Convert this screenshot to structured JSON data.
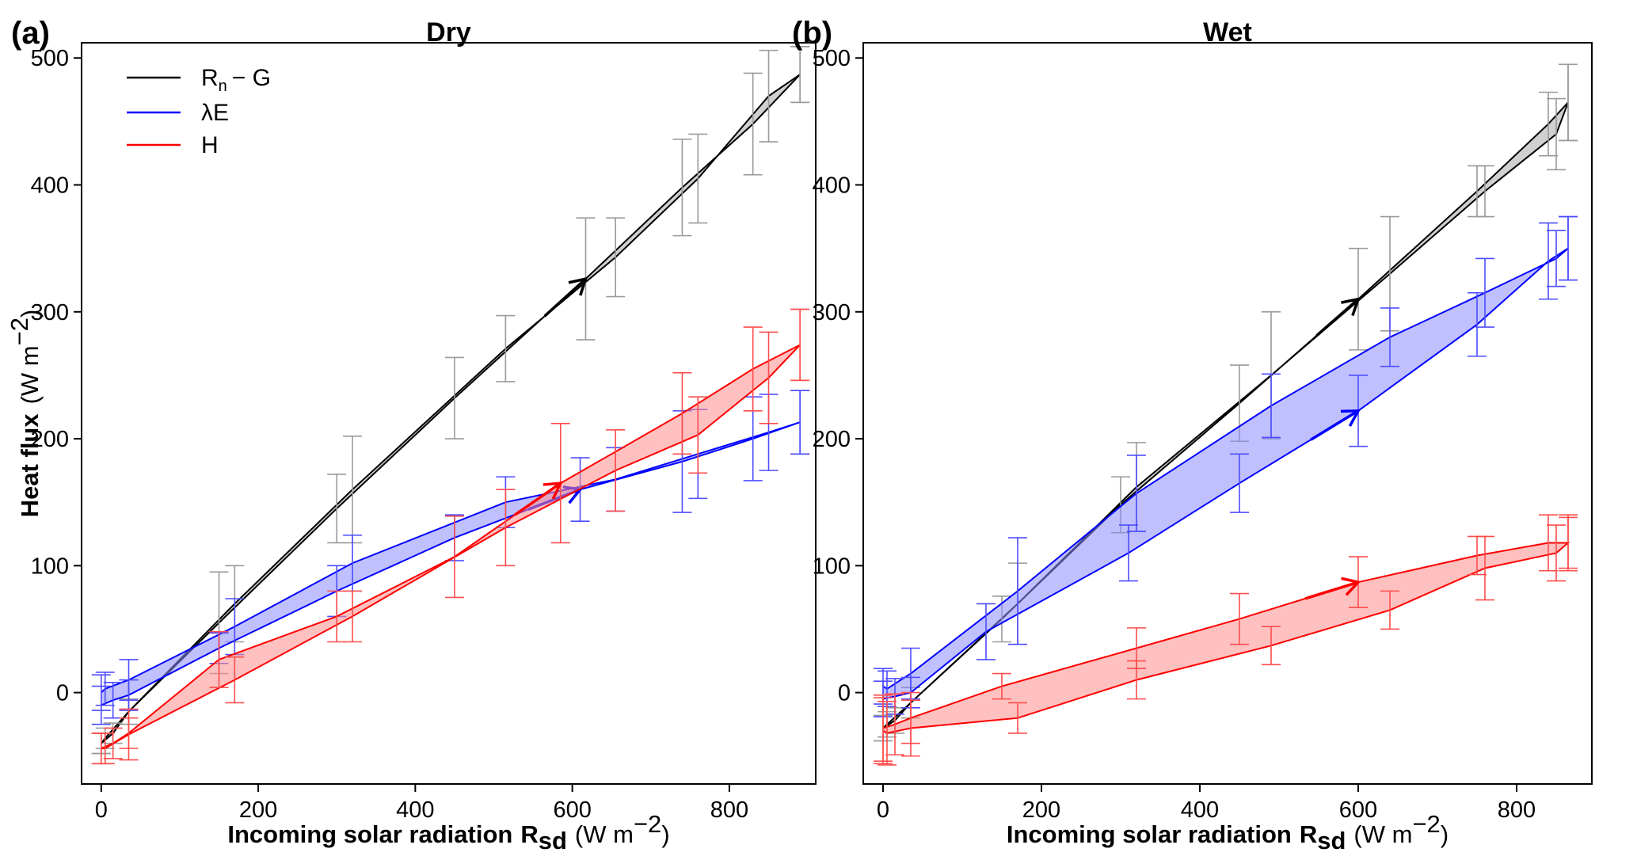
{
  "chart_data": [
    {
      "type": "line",
      "panel_label": "(a)",
      "title": "Dry",
      "xlabel": "Incoming solar radiation",
      "xlabel_symbol": "R",
      "xlabel_sub": "sd",
      "xlabel_unit": "(W m",
      "xlabel_unit_exp": "−2",
      "ylabel": "Heat flux",
      "ylabel_unit": "(W m",
      "ylabel_unit_exp": "−2",
      "xlim": [
        -25,
        910
      ],
      "ylim": [
        -72,
        512
      ],
      "xticks": [
        0,
        200,
        400,
        600,
        800
      ],
      "yticks": [
        0,
        100,
        200,
        300,
        400,
        500
      ],
      "legend": [
        "Rn − G",
        "λE",
        "H"
      ],
      "series": [
        {
          "name": "Rn − G",
          "color": "#000000",
          "fill": "#a9a9a9",
          "errcolor": "#9a9a9a",
          "arrow_x": 617,
          "arrow_y": 326,
          "rising": {
            "x": [
              0,
              15,
              35,
              150,
              300,
              450,
              617,
              740,
              830,
              890
            ],
            "y": [
              -40,
              -32,
              -15,
              55,
              145,
              232,
              326,
              398,
              448,
              487
            ],
            "err": [
              8,
              8,
              10,
              40,
              27,
              32,
              48,
              38,
              40,
              22
            ]
          },
          "falling": {
            "x": [
              890,
              850,
              760,
              655,
              515,
              320,
              170,
              35,
              5,
              0
            ],
            "y": [
              487,
              470,
              405,
              343,
              271,
              160,
              70,
              -15,
              -36,
              -40
            ],
            "err": [
              22,
              36,
              35,
              31,
              26,
              42,
              30,
              10,
              8,
              8
            ]
          }
        },
        {
          "name": "λE",
          "color": "#0000ff",
          "fill": "#8c8cff",
          "errcolor": "#4d4dff",
          "arrow_x": 610,
          "arrow_y": 160,
          "rising": {
            "x": [
              0,
              15,
              35,
              150,
              300,
              450,
              610,
              740,
              830,
              890
            ],
            "y": [
              -10,
              -6,
              -2,
              35,
              80,
              122,
              160,
              182,
              200,
              213
            ],
            "err": [
              15,
              14,
              12,
              12,
              20,
              18,
              25,
              40,
              33,
              25
            ]
          },
          "falling": {
            "x": [
              890,
              850,
              760,
              655,
              515,
              320,
              170,
              35,
              5,
              0
            ],
            "y": [
              213,
              205,
              188,
              168,
              150,
              102,
              52,
              10,
              3,
              0
            ],
            "err": [
              25,
              30,
              35,
              25,
              20,
              22,
              22,
              16,
              13,
              14
            ]
          }
        },
        {
          "name": "H",
          "color": "#ff0000",
          "fill": "#ff8c8c",
          "errcolor": "#ff4d4d",
          "arrow_x": 585,
          "arrow_y": 165,
          "rising": {
            "x": [
              0,
              15,
              35,
              150,
              300,
              450,
              585,
              740,
              830,
              890
            ],
            "y": [
              -44,
              -40,
              -32,
              26,
              60,
              107,
              165,
              220,
              255,
              274
            ],
            "err": [
              12,
              12,
              12,
              22,
              20,
              32,
              47,
              32,
              33,
              28
            ]
          },
          "falling": {
            "x": [
              890,
              850,
              760,
              655,
              515,
              320,
              170,
              35,
              5,
              0
            ],
            "y": [
              274,
              248,
              203,
              175,
              130,
              60,
              10,
              -33,
              -44,
              -44
            ],
            "err": [
              28,
              36,
              30,
              32,
              30,
              20,
              18,
              20,
              12,
              12
            ]
          }
        }
      ]
    },
    {
      "type": "line",
      "panel_label": "(b)",
      "title": "Wet",
      "xlabel": "Incoming solar radiation",
      "xlabel_symbol": "R",
      "xlabel_sub": "sd",
      "xlabel_unit": "(W m",
      "xlabel_unit_exp": "−2",
      "xlim": [
        -25,
        895
      ],
      "ylim": [
        -72,
        512
      ],
      "xticks": [
        0,
        200,
        400,
        600,
        800
      ],
      "yticks": [
        0,
        100,
        200,
        300,
        400,
        500
      ],
      "series": [
        {
          "name": "Rn − G",
          "color": "#000000",
          "fill": "#a9a9a9",
          "errcolor": "#9a9a9a",
          "arrow_x": 600,
          "arrow_y": 310,
          "rising": {
            "x": [
              0,
              15,
              35,
              150,
              300,
              450,
              600,
              750,
              840,
              865
            ],
            "y": [
              -28,
              -22,
              -8,
              58,
              148,
              228,
              310,
              395,
              448,
              465
            ],
            "err": [
              10,
              10,
              12,
              18,
              22,
              30,
              40,
              20,
              25,
              30
            ]
          },
          "falling": {
            "x": [
              865,
              850,
              760,
              640,
              490,
              320,
              170,
              35,
              5,
              0
            ],
            "y": [
              465,
              440,
              395,
              330,
              250,
              162,
              70,
              -8,
              -25,
              -28
            ],
            "err": [
              30,
              28,
              20,
              45,
              50,
              35,
              32,
              12,
              10,
              10
            ]
          }
        },
        {
          "name": "λE",
          "color": "#0000ff",
          "fill": "#8c8cff",
          "errcolor": "#4d4dff",
          "arrow_x": 600,
          "arrow_y": 222,
          "rising": {
            "x": [
              0,
              15,
              35,
              130,
              310,
              450,
              600,
              750,
              840,
              865
            ],
            "y": [
              -5,
              -3,
              0,
              48,
              110,
              165,
              222,
              290,
              340,
              350
            ],
            "err": [
              14,
              14,
              12,
              22,
              22,
              23,
              28,
              25,
              30,
              25
            ]
          },
          "falling": {
            "x": [
              865,
              850,
              760,
              640,
              490,
              320,
              170,
              35,
              5,
              0
            ],
            "y": [
              350,
              342,
              315,
              280,
              226,
              157,
              80,
              15,
              3,
              5
            ],
            "err": [
              25,
              22,
              27,
              23,
              25,
              30,
              42,
              20,
              14,
              14
            ]
          }
        },
        {
          "name": "H",
          "color": "#ff0000",
          "fill": "#ff8c8c",
          "errcolor": "#ff4d4d",
          "arrow_x": 600,
          "arrow_y": 87,
          "rising": {
            "x": [
              0,
              15,
              35,
              150,
              320,
              450,
              600,
              750,
              840,
              865
            ],
            "y": [
              -28,
              -25,
              -20,
              5,
              35,
              58,
              87,
              108,
              118,
              118
            ],
            "err": [
              26,
              24,
              20,
              10,
              16,
              20,
              20,
              15,
              22,
              22
            ]
          },
          "falling": {
            "x": [
              865,
              850,
              760,
              640,
              490,
              320,
              170,
              35,
              5,
              0
            ],
            "y": [
              118,
              110,
              98,
              65,
              37,
              10,
              -20,
              -28,
              -32,
              -30
            ],
            "err": [
              20,
              22,
              25,
              15,
              15,
              15,
              12,
              22,
              25,
              26
            ]
          }
        }
      ]
    }
  ]
}
